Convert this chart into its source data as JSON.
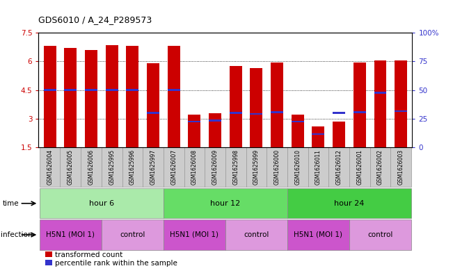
{
  "title": "GDS6010 / A_24_P289573",
  "samples": [
    "GSM1626004",
    "GSM1626005",
    "GSM1626006",
    "GSM1625995",
    "GSM1625996",
    "GSM1625997",
    "GSM1626007",
    "GSM1626008",
    "GSM1626009",
    "GSM1625998",
    "GSM1625999",
    "GSM1626000",
    "GSM1626010",
    "GSM1626011",
    "GSM1626012",
    "GSM1626001",
    "GSM1626002",
    "GSM1626003"
  ],
  "bar_heights": [
    6.8,
    6.7,
    6.6,
    6.85,
    6.82,
    5.9,
    6.8,
    3.2,
    3.3,
    5.75,
    5.65,
    5.95,
    3.2,
    2.6,
    2.85,
    5.95,
    6.05,
    6.05
  ],
  "percentile_values": [
    4.5,
    4.5,
    4.5,
    4.5,
    4.5,
    3.3,
    4.5,
    2.85,
    2.9,
    3.3,
    3.25,
    3.35,
    2.85,
    2.2,
    3.3,
    3.35,
    4.35,
    3.4
  ],
  "ymin": 1.5,
  "ymax": 7.5,
  "yticks": [
    1.5,
    3.0,
    4.5,
    6.0,
    7.5
  ],
  "ytick_labels": [
    "1.5",
    "3",
    "4.5",
    "6",
    "7.5"
  ],
  "right_yticks": [
    0,
    25,
    50,
    75,
    100
  ],
  "right_ytick_labels": [
    "0",
    "25",
    "50",
    "75",
    "100%"
  ],
  "bar_color": "#cc0000",
  "percentile_color": "#3333cc",
  "grid_color": "#000000",
  "time_groups": [
    {
      "label": "hour 6",
      "start": 0,
      "end": 6,
      "color": "#aaeaaa"
    },
    {
      "label": "hour 12",
      "start": 6,
      "end": 12,
      "color": "#66dd66"
    },
    {
      "label": "hour 24",
      "start": 12,
      "end": 18,
      "color": "#44cc44"
    }
  ],
  "infection_groups": [
    {
      "label": "H5N1 (MOI 1)",
      "start": 0,
      "end": 3,
      "color": "#cc55cc"
    },
    {
      "label": "control",
      "start": 3,
      "end": 6,
      "color": "#dd99dd"
    },
    {
      "label": "H5N1 (MOI 1)",
      "start": 6,
      "end": 9,
      "color": "#cc55cc"
    },
    {
      "label": "control",
      "start": 9,
      "end": 12,
      "color": "#dd99dd"
    },
    {
      "label": "H5N1 (MOI 1)",
      "start": 12,
      "end": 15,
      "color": "#cc55cc"
    },
    {
      "label": "control",
      "start": 15,
      "end": 18,
      "color": "#dd99dd"
    }
  ],
  "legend_labels": [
    "transformed count",
    "percentile rank within the sample"
  ],
  "left_axis_color": "#cc0000",
  "right_axis_color": "#3333cc",
  "sample_cell_color": "#cccccc",
  "sample_cell_edge": "#999999"
}
